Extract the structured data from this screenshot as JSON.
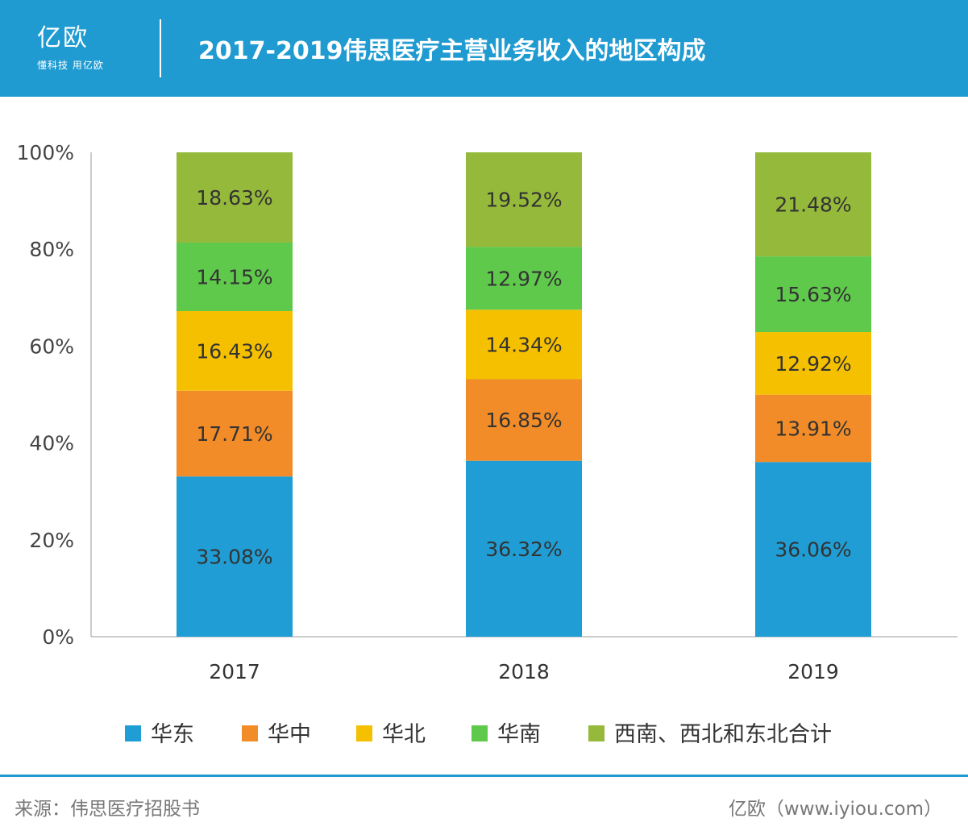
{
  "header": {
    "logo_text": "亿欧",
    "logo_slogan": "懂科技 用亿欧",
    "title": "2017-2019伟思医疗主营业务收入的地区构成"
  },
  "chart_data": {
    "type": "bar",
    "stacked": true,
    "categories": [
      "2017",
      "2018",
      "2019"
    ],
    "ylim": [
      0,
      100
    ],
    "yticks": [
      "0%",
      "20%",
      "40%",
      "60%",
      "80%",
      "100%"
    ],
    "legend_position": "bottom",
    "series": [
      {
        "name": "华东",
        "color": "#1f9dd4",
        "values": [
          33.08,
          36.32,
          36.06
        ],
        "labels": [
          "33.08%",
          "36.32%",
          "36.06%"
        ]
      },
      {
        "name": "华中",
        "color": "#f28c28",
        "values": [
          17.71,
          16.85,
          13.91
        ],
        "labels": [
          "17.71%",
          "16.85%",
          "13.91%"
        ]
      },
      {
        "name": "华北",
        "color": "#f5c000",
        "values": [
          16.43,
          14.34,
          12.92
        ],
        "labels": [
          "16.43%",
          "14.34%",
          "12.92%"
        ]
      },
      {
        "name": "华南",
        "color": "#5fc94c",
        "values": [
          14.15,
          12.97,
          15.63
        ],
        "labels": [
          "14.15%",
          "12.97%",
          "15.63%"
        ]
      },
      {
        "name": "西南、西北和东北合计",
        "color": "#95b93a",
        "values": [
          18.63,
          19.52,
          21.48
        ],
        "labels": [
          "18.63%",
          "19.52%",
          "21.48%"
        ]
      }
    ]
  },
  "footer": {
    "source": "来源：伟思医疗招股书",
    "credit": "亿欧（www.iyiou.com）"
  }
}
